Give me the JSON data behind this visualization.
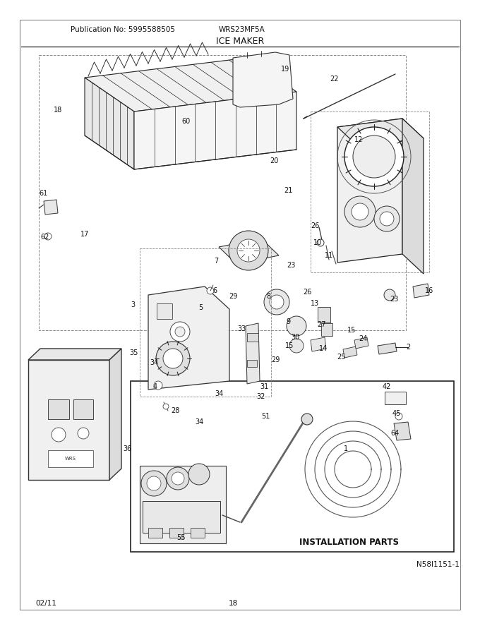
{
  "title": "ICE MAKER",
  "publication": "Publication No: 5995588505",
  "model": "WRS23MF5A",
  "date": "02/11",
  "page": "18",
  "diagram_id": "N58I1151-1",
  "installation_parts_label": "INSTALLATION PARTS",
  "bg_color": "#ffffff",
  "line_color": "#000000",
  "text_color": "#000000",
  "figsize": [
    6.8,
    8.8
  ],
  "dpi": 100
}
